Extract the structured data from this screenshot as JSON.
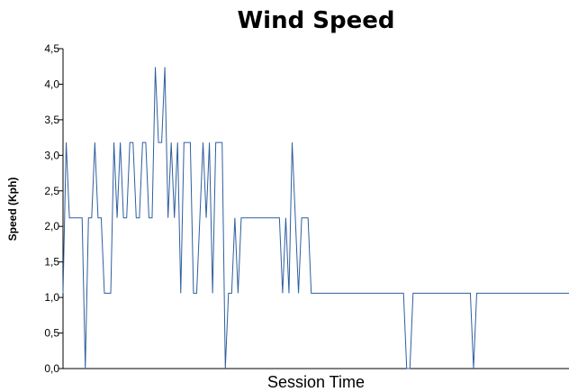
{
  "chart_data": {
    "type": "line",
    "title": "Wind Speed",
    "xlabel": "Session Time",
    "ylabel": "Speed (Kph)",
    "ylim": [
      0,
      4.5
    ],
    "yticks": [
      "0,0",
      "0,5",
      "1,0",
      "1,5",
      "2,0",
      "2,5",
      "3,0",
      "3,5",
      "4,0",
      "4,5"
    ],
    "grid": false,
    "series": [
      {
        "color": "#2f5f9e",
        "values": [
          1.06,
          3.18,
          2.12,
          2.12,
          2.12,
          2.12,
          2.12,
          0,
          2.12,
          2.12,
          3.18,
          2.12,
          2.12,
          1.06,
          1.06,
          1.06,
          3.18,
          2.12,
          3.18,
          2.12,
          2.12,
          3.18,
          3.18,
          2.12,
          2.12,
          3.18,
          3.18,
          2.12,
          2.12,
          4.24,
          3.18,
          3.18,
          4.24,
          2.12,
          3.18,
          2.12,
          3.18,
          1.06,
          3.18,
          3.18,
          3.18,
          1.06,
          1.06,
          2.12,
          3.18,
          2.12,
          3.18,
          1.06,
          3.18,
          3.18,
          3.18,
          0,
          1.06,
          1.06,
          2.12,
          1.06,
          2.12,
          2.12,
          2.12,
          2.12,
          2.12,
          2.12,
          2.12,
          2.12,
          2.12,
          2.12,
          2.12,
          2.12,
          2.12,
          1.06,
          2.12,
          1.06,
          3.18,
          2.12,
          1.06,
          2.12,
          2.12,
          2.12,
          1.06,
          1.06,
          1.06,
          1.06,
          1.06,
          1.06,
          1.06,
          1.06,
          1.06,
          1.06,
          1.06,
          1.06,
          1.06,
          1.06,
          1.06,
          1.06,
          1.06,
          1.06,
          1.06,
          1.06,
          1.06,
          1.06,
          1.06,
          1.06,
          1.06,
          1.06,
          1.06,
          1.06,
          1.06,
          1.06,
          0,
          0,
          1.06,
          1.06,
          1.06,
          1.06,
          1.06,
          1.06,
          1.06,
          1.06,
          1.06,
          1.06,
          1.06,
          1.06,
          1.06,
          1.06,
          1.06,
          1.06,
          1.06,
          1.06,
          1.06,
          0,
          1.06,
          1.06,
          1.06,
          1.06,
          1.06,
          1.06,
          1.06,
          1.06,
          1.06,
          1.06,
          1.06,
          1.06,
          1.06,
          1.06,
          1.06,
          1.06,
          1.06,
          1.06,
          1.06,
          1.06,
          1.06,
          1.06,
          1.06,
          1.06,
          1.06,
          1.06,
          1.06,
          1.06,
          1.06,
          1.06
        ]
      }
    ]
  }
}
